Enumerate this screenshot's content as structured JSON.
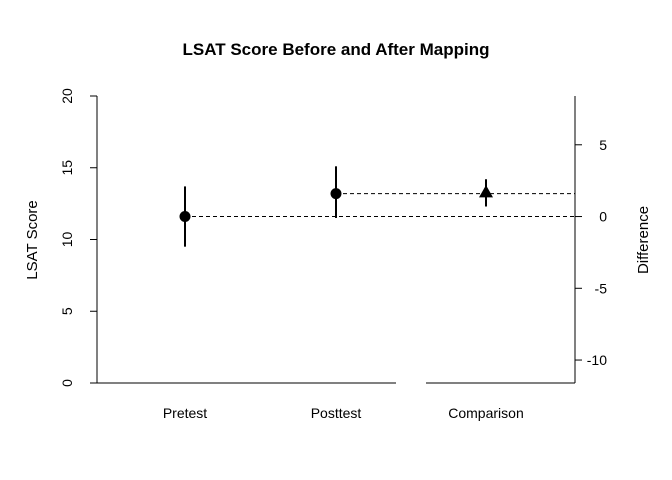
{
  "chart_data": {
    "type": "scatter",
    "title": "LSAT Score Before and After Mapping",
    "ylabel": "LSAT Score",
    "ylabel_right": "Difference",
    "categories": [
      "Pretest",
      "Posttest",
      "Comparison"
    ],
    "ylim": [
      0,
      20
    ],
    "yticks": [
      "0",
      "5",
      "10",
      "15",
      "20"
    ],
    "ylim_right": [
      -11.6,
      8.4
    ],
    "yticks_right": [
      "-10",
      "-5",
      "0",
      "5"
    ],
    "yticks_right_values": [
      -10,
      -5,
      0,
      5
    ],
    "points": [
      {
        "category": "Pretest",
        "axis": "left",
        "marker": "circle",
        "value": 11.6,
        "lower": 9.5,
        "upper": 13.7
      },
      {
        "category": "Posttest",
        "axis": "left",
        "marker": "circle",
        "value": 13.2,
        "lower": 11.5,
        "upper": 15.1
      },
      {
        "category": "Comparison",
        "axis": "right",
        "marker": "triangle",
        "value": 1.7,
        "lower": 0.7,
        "upper": 2.6
      }
    ],
    "reference_lines": [
      {
        "axis": "left",
        "value": 11.6,
        "from_category": "Pretest"
      },
      {
        "axis": "left",
        "value": 13.2,
        "from_category": "Posttest"
      }
    ],
    "grid": false,
    "legend": "none"
  }
}
